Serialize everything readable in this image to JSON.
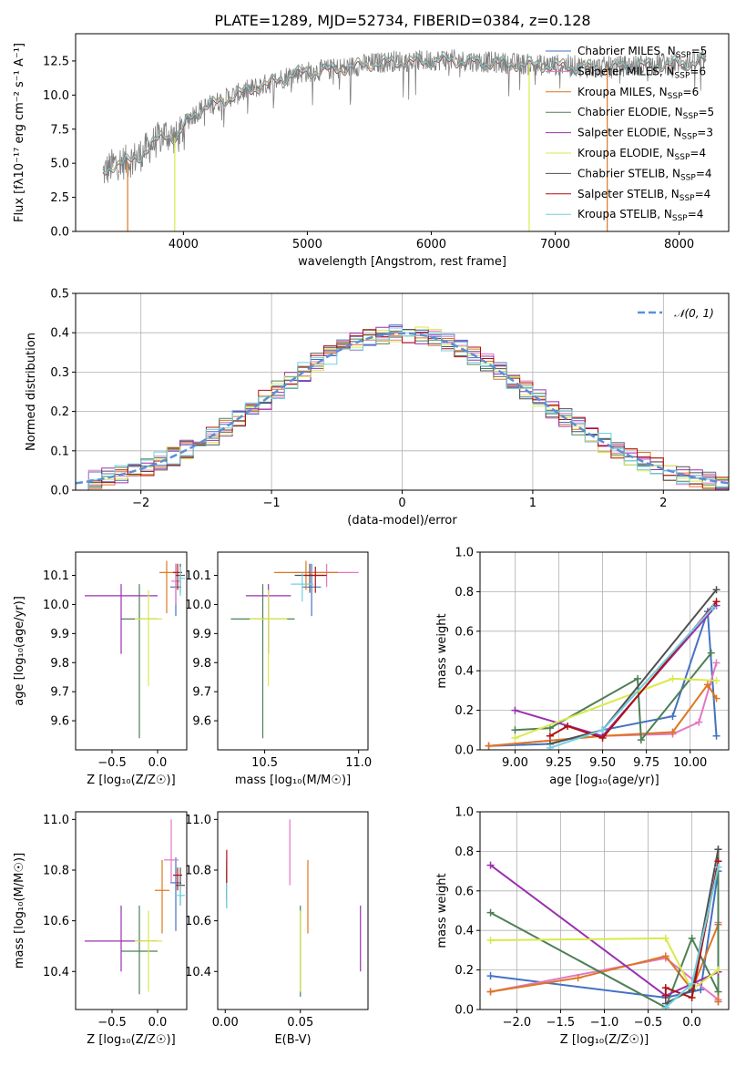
{
  "figure": {
    "title": "PLATE=1289, MJD=52734, FIBERID=0384, z=0.128"
  },
  "models": [
    {
      "name": "Chabrier MILES",
      "nssp": "5",
      "color": "#4472c4"
    },
    {
      "name": "Salpeter MILES",
      "nssp": "6",
      "color": "#e377c2"
    },
    {
      "name": "Kroupa MILES",
      "nssp": "6",
      "color": "#dd7722"
    },
    {
      "name": "Chabrier ELODIE",
      "nssp": "5",
      "color": "#4e8055"
    },
    {
      "name": "Salpeter ELODIE",
      "nssp": "3",
      "color": "#9b30b0"
    },
    {
      "name": "Kroupa ELODIE",
      "nssp": "4",
      "color": "#d8ea4a"
    },
    {
      "name": "Chabrier STELIB",
      "nssp": "4",
      "color": "#505050"
    },
    {
      "name": "Salpeter STELIB",
      "nssp": "4",
      "color": "#b01010"
    },
    {
      "name": "Kroupa STELIB",
      "nssp": "4",
      "color": "#70d0e0"
    }
  ],
  "chart_data": [
    {
      "id": "spectrum",
      "type": "line",
      "title": "PLATE=1289, MJD=52734, FIBERID=0384, z=0.128",
      "xlabel": "wavelength [Angstrom, rest frame]",
      "ylabel": "Flux [fλ10⁻¹⁷ erg cm⁻² s⁻¹ A⁻¹]",
      "xlim": [
        3130,
        8400
      ],
      "ylim": [
        0,
        14.5
      ],
      "xticks": [
        4000,
        5000,
        6000,
        7000,
        8000
      ],
      "yticks": [
        0.0,
        2.5,
        5.0,
        7.5,
        10.0,
        12.5
      ],
      "data_color": "#808080",
      "model_color": "#70d0e0",
      "continuum": [
        [
          3350,
          4.3
        ],
        [
          3450,
          5.0
        ],
        [
          3550,
          5.1
        ],
        [
          3650,
          5.6
        ],
        [
          3750,
          6.4
        ],
        [
          3850,
          7.2
        ],
        [
          3950,
          6.8
        ],
        [
          4050,
          8.4
        ],
        [
          4150,
          9.0
        ],
        [
          4300,
          9.6
        ],
        [
          4500,
          10.3
        ],
        [
          4700,
          10.9
        ],
        [
          4900,
          11.6
        ],
        [
          5100,
          11.8
        ],
        [
          5300,
          12.0
        ],
        [
          5500,
          12.3
        ],
        [
          5700,
          12.5
        ],
        [
          5900,
          12.5
        ],
        [
          6100,
          12.6
        ],
        [
          6300,
          12.5
        ],
        [
          6500,
          12.4
        ],
        [
          6700,
          12.3
        ],
        [
          6900,
          12.2
        ],
        [
          7100,
          12.2
        ],
        [
          7300,
          12.0
        ],
        [
          7500,
          12.1
        ],
        [
          7700,
          12.2
        ],
        [
          7900,
          12.3
        ],
        [
          8100,
          12.4
        ],
        [
          8220,
          12.6
        ]
      ],
      "dips": [
        [
          3550,
          0.0
        ],
        [
          3930,
          0.0
        ],
        [
          6790,
          0.0
        ],
        [
          7420,
          0.0
        ]
      ]
    },
    {
      "id": "residuals",
      "type": "line",
      "xlabel": "(data-model)/error",
      "ylabel": "Normed distribution",
      "xlim": [
        -2.5,
        2.5
      ],
      "ylim": [
        0,
        0.5
      ],
      "xticks": [
        -2,
        -1,
        0,
        1,
        2
      ],
      "yticks": [
        0.0,
        0.1,
        0.2,
        0.3,
        0.4,
        0.5
      ],
      "grid": true,
      "legend": "top-right",
      "gauss_label": "𝒩(0, 1)",
      "gauss_color": "#5b8fd6",
      "bin_width": 0.1,
      "bin_start": -2.5
    },
    {
      "id": "age-vs-Z",
      "type": "scatter",
      "xlabel": "Z [log₁₀(Z/Z☉)]",
      "ylabel": "age  [log₁₀(age/yr)]",
      "xlim": [
        -0.9,
        0.32
      ],
      "ylim": [
        9.5,
        10.18
      ],
      "xticks": [
        -0.5,
        0.0
      ],
      "yticks": [
        9.6,
        9.7,
        9.8,
        9.9,
        10.0,
        10.1
      ],
      "points": [
        {
          "m": 0,
          "x": 0.2,
          "y": 10.06,
          "xe": 0.06,
          "ye": [
            0.1,
            0.08
          ]
        },
        {
          "m": 1,
          "x": 0.2,
          "y": 10.08,
          "xe": 0.05,
          "ye": [
            0.08,
            0.06
          ]
        },
        {
          "m": 2,
          "x": 0.1,
          "y": 10.11,
          "xe": 0.08,
          "ye": [
            0.14,
            0.04
          ]
        },
        {
          "m": 3,
          "x": -0.2,
          "y": 9.95,
          "xe": 0.2,
          "ye": [
            0.41,
            0.12
          ]
        },
        {
          "m": 4,
          "x": -0.4,
          "y": 10.03,
          "xe": 0.4,
          "ye": [
            0.2,
            0.04
          ]
        },
        {
          "m": 5,
          "x": -0.1,
          "y": 9.95,
          "xe": 0.15,
          "ye": [
            0.23,
            0.1
          ]
        },
        {
          "m": 6,
          "x": 0.25,
          "y": 10.1,
          "xe": 0.05,
          "ye": [
            0.06,
            0.04
          ]
        },
        {
          "m": 7,
          "x": 0.22,
          "y": 10.11,
          "xe": 0.05,
          "ye": [
            0.06,
            0.03
          ]
        },
        {
          "m": 8,
          "x": 0.25,
          "y": 10.09,
          "xe": 0.05,
          "ye": [
            0.06,
            0.04
          ]
        }
      ]
    },
    {
      "id": "age-vs-mass",
      "type": "scatter",
      "xlabel": "mass [log₁₀(M/M☉)]",
      "ylabel": "",
      "xlim": [
        10.25,
        11.05
      ],
      "ylim": [
        9.5,
        10.18
      ],
      "xticks": [
        10.5,
        11.0
      ],
      "yticks": [
        9.6,
        9.7,
        9.8,
        9.9,
        10.0,
        10.1
      ],
      "points": [
        {
          "m": 0,
          "x": 10.75,
          "y": 10.06,
          "xe": 0.05,
          "ye": [
            0.1,
            0.08
          ]
        },
        {
          "m": 1,
          "x": 10.83,
          "y": 10.11,
          "xe": 0.17,
          "ye": [
            0.05,
            0.03
          ]
        },
        {
          "m": 2,
          "x": 10.72,
          "y": 10.11,
          "xe": 0.17,
          "ye": [
            0.06,
            0.04
          ]
        },
        {
          "m": 3,
          "x": 10.49,
          "y": 9.95,
          "xe": 0.17,
          "ye": [
            0.41,
            0.12
          ]
        },
        {
          "m": 4,
          "x": 10.52,
          "y": 10.03,
          "xe": 0.12,
          "ye": [
            0.2,
            0.04
          ]
        },
        {
          "m": 5,
          "x": 10.52,
          "y": 9.95,
          "xe": 0.1,
          "ye": [
            0.23,
            0.1
          ]
        },
        {
          "m": 6,
          "x": 10.74,
          "y": 10.1,
          "xe": 0.08,
          "ye": [
            0.06,
            0.04
          ]
        },
        {
          "m": 7,
          "x": 10.77,
          "y": 10.1,
          "xe": 0.06,
          "ye": [
            0.06,
            0.03
          ]
        },
        {
          "m": 8,
          "x": 10.7,
          "y": 10.07,
          "xe": 0.06,
          "ye": [
            0.06,
            0.04
          ]
        }
      ]
    },
    {
      "id": "massweight-vs-age",
      "type": "line",
      "xlabel": "age  [log₁₀(age/yr)]",
      "ylabel": "mass weight",
      "xlim": [
        8.8,
        10.22
      ],
      "ylim": [
        0,
        1.0
      ],
      "xticks": [
        9.0,
        9.25,
        9.5,
        9.75,
        10.0
      ],
      "yticks": [
        0.0,
        0.2,
        0.4,
        0.6,
        0.8,
        1.0
      ],
      "grid": true,
      "series": [
        {
          "m": 0,
          "x": [
            8.85,
            9.2,
            9.5,
            9.9,
            10.1,
            10.15
          ],
          "y": [
            0.02,
            0.03,
            0.1,
            0.17,
            0.7,
            0.07
          ]
        },
        {
          "m": 1,
          "x": [
            8.85,
            9.5,
            9.9,
            10.05,
            10.15
          ],
          "y": [
            0.02,
            0.07,
            0.08,
            0.14,
            0.44
          ]
        },
        {
          "m": 2,
          "x": [
            8.85,
            9.5,
            9.9,
            10.1,
            10.15
          ],
          "y": [
            0.02,
            0.07,
            0.09,
            0.33,
            0.26
          ]
        },
        {
          "m": 3,
          "x": [
            9.0,
            9.2,
            9.7,
            9.72,
            10.12
          ],
          "y": [
            0.1,
            0.11,
            0.36,
            0.05,
            0.49
          ]
        },
        {
          "m": 4,
          "x": [
            9.0,
            9.5,
            10.15
          ],
          "y": [
            0.2,
            0.07,
            0.73
          ]
        },
        {
          "m": 5,
          "x": [
            9.0,
            9.9,
            10.15
          ],
          "y": [
            0.06,
            0.36,
            0.35
          ]
        },
        {
          "m": 6,
          "x": [
            9.2,
            9.5,
            10.15
          ],
          "y": [
            0.03,
            0.1,
            0.81
          ]
        },
        {
          "m": 7,
          "x": [
            9.2,
            9.3,
            9.5,
            10.15
          ],
          "y": [
            0.07,
            0.12,
            0.06,
            0.75
          ]
        },
        {
          "m": 8,
          "x": [
            9.2,
            9.5,
            10.13
          ],
          "y": [
            0.01,
            0.1,
            0.72
          ]
        }
      ]
    },
    {
      "id": "mass-vs-Z",
      "type": "scatter",
      "xlabel": "Z [log₁₀(Z/Z☉)]",
      "ylabel": "mass [log₁₀(M/M☉)]",
      "xlim": [
        -0.9,
        0.32
      ],
      "ylim": [
        10.25,
        11.03
      ],
      "xticks": [
        -0.5,
        0.0
      ],
      "yticks": [
        10.4,
        10.6,
        10.8,
        11.0
      ],
      "points": [
        {
          "m": 0,
          "x": 0.2,
          "y": 10.75,
          "xe": 0.06,
          "ye": [
            0.19,
            0.1
          ]
        },
        {
          "m": 1,
          "x": 0.15,
          "y": 10.84,
          "xe": 0.08,
          "ye": [
            0.09,
            0.16
          ]
        },
        {
          "m": 2,
          "x": 0.05,
          "y": 10.72,
          "xe": 0.08,
          "ye": [
            0.17,
            0.12
          ]
        },
        {
          "m": 3,
          "x": -0.2,
          "y": 10.48,
          "xe": 0.2,
          "ye": [
            0.17,
            0.18
          ]
        },
        {
          "m": 4,
          "x": -0.4,
          "y": 10.52,
          "xe": 0.4,
          "ye": [
            0.12,
            0.14
          ]
        },
        {
          "m": 5,
          "x": -0.1,
          "y": 10.52,
          "xe": 0.15,
          "ye": [
            0.2,
            0.12
          ]
        },
        {
          "m": 6,
          "x": 0.25,
          "y": 10.74,
          "xe": 0.05,
          "ye": [
            0.08,
            0.07
          ]
        },
        {
          "m": 7,
          "x": 0.22,
          "y": 10.78,
          "xe": 0.05,
          "ye": [
            0.06,
            0.03
          ]
        },
        {
          "m": 8,
          "x": 0.25,
          "y": 10.7,
          "xe": 0.05,
          "ye": [
            0.04,
            0.04
          ]
        }
      ]
    },
    {
      "id": "mass-vs-ebv",
      "type": "scatter",
      "xlabel": "E(B-V)",
      "ylabel": "",
      "xlim": [
        -0.005,
        0.095
      ],
      "ylim": [
        10.25,
        11.03
      ],
      "xticks": [
        0.0,
        0.05
      ],
      "yticks": [
        10.4,
        10.6,
        10.8,
        11.0
      ],
      "points": [
        {
          "m": 0,
          "x": 0.001,
          "y": 10.75,
          "xe": 0,
          "ye": [
            0.1,
            0.05
          ]
        },
        {
          "m": 1,
          "x": 0.043,
          "y": 10.84,
          "xe": 0,
          "ye": [
            0.1,
            0.16
          ]
        },
        {
          "m": 2,
          "x": 0.055,
          "y": 10.72,
          "xe": 0,
          "ye": [
            0.17,
            0.12
          ]
        },
        {
          "m": 3,
          "x": 0.05,
          "y": 10.5,
          "xe": 0,
          "ye": [
            0.2,
            0.16
          ]
        },
        {
          "m": 4,
          "x": 0.09,
          "y": 10.52,
          "xe": 0,
          "ye": [
            0.12,
            0.14
          ]
        },
        {
          "m": 5,
          "x": 0.05,
          "y": 10.52,
          "xe": 0,
          "ye": [
            0.2,
            0.12
          ]
        },
        {
          "m": 6,
          "x": 0.001,
          "y": 10.76,
          "xe": 0,
          "ye": [
            0.08,
            0.08
          ]
        },
        {
          "m": 7,
          "x": 0.001,
          "y": 10.8,
          "xe": 0,
          "ye": [
            0.06,
            0.08
          ]
        },
        {
          "m": 8,
          "x": 0.001,
          "y": 10.7,
          "xe": 0,
          "ye": [
            0.05,
            0.05
          ]
        }
      ]
    },
    {
      "id": "massweight-vs-Z",
      "type": "line",
      "xlabel": "Z [log₁₀(Z/Z☉)]",
      "ylabel": "mass weight",
      "xlim": [
        -2.42,
        0.42
      ],
      "ylim": [
        0,
        1.0
      ],
      "xticks": [
        -2.0,
        -1.5,
        -1.0,
        -0.5,
        0.0
      ],
      "yticks": [
        0.0,
        0.2,
        0.4,
        0.6,
        0.8,
        1.0
      ],
      "grid": true,
      "series": [
        {
          "m": 0,
          "x": [
            -2.3,
            -0.3,
            0.1,
            0.3,
            0.3
          ],
          "y": [
            0.17,
            0.06,
            0.1,
            0.7,
            0.04
          ]
        },
        {
          "m": 1,
          "x": [
            -2.3,
            -0.3,
            0.3,
            0.3
          ],
          "y": [
            0.09,
            0.26,
            0.05,
            0.44
          ]
        },
        {
          "m": 2,
          "x": [
            -2.3,
            -1.3,
            -0.3,
            0.0,
            0.3,
            0.3
          ],
          "y": [
            0.09,
            0.16,
            0.27,
            0.1,
            0.43,
            0.04
          ]
        },
        {
          "m": 3,
          "x": [
            -2.3,
            -0.3,
            0.0,
            0.3,
            0.3
          ],
          "y": [
            0.49,
            0.01,
            0.36,
            0.09,
            0.81
          ]
        },
        {
          "m": 4,
          "x": [
            -2.3,
            -0.3,
            0.3
          ],
          "y": [
            0.73,
            0.07,
            0.19
          ]
        },
        {
          "m": 5,
          "x": [
            -2.3,
            -0.3,
            0.0,
            0.3
          ],
          "y": [
            0.35,
            0.36,
            0.1,
            0.2
          ]
        },
        {
          "m": 6,
          "x": [
            -0.3,
            0.0,
            0.3
          ],
          "y": [
            0.03,
            0.1,
            0.81
          ]
        },
        {
          "m": 7,
          "x": [
            -0.3,
            -0.3,
            0.0,
            0.3
          ],
          "y": [
            0.07,
            0.11,
            0.06,
            0.75
          ]
        },
        {
          "m": 8,
          "x": [
            -0.3,
            0.0,
            0.3
          ],
          "y": [
            0.01,
            0.13,
            0.72
          ]
        }
      ]
    }
  ]
}
